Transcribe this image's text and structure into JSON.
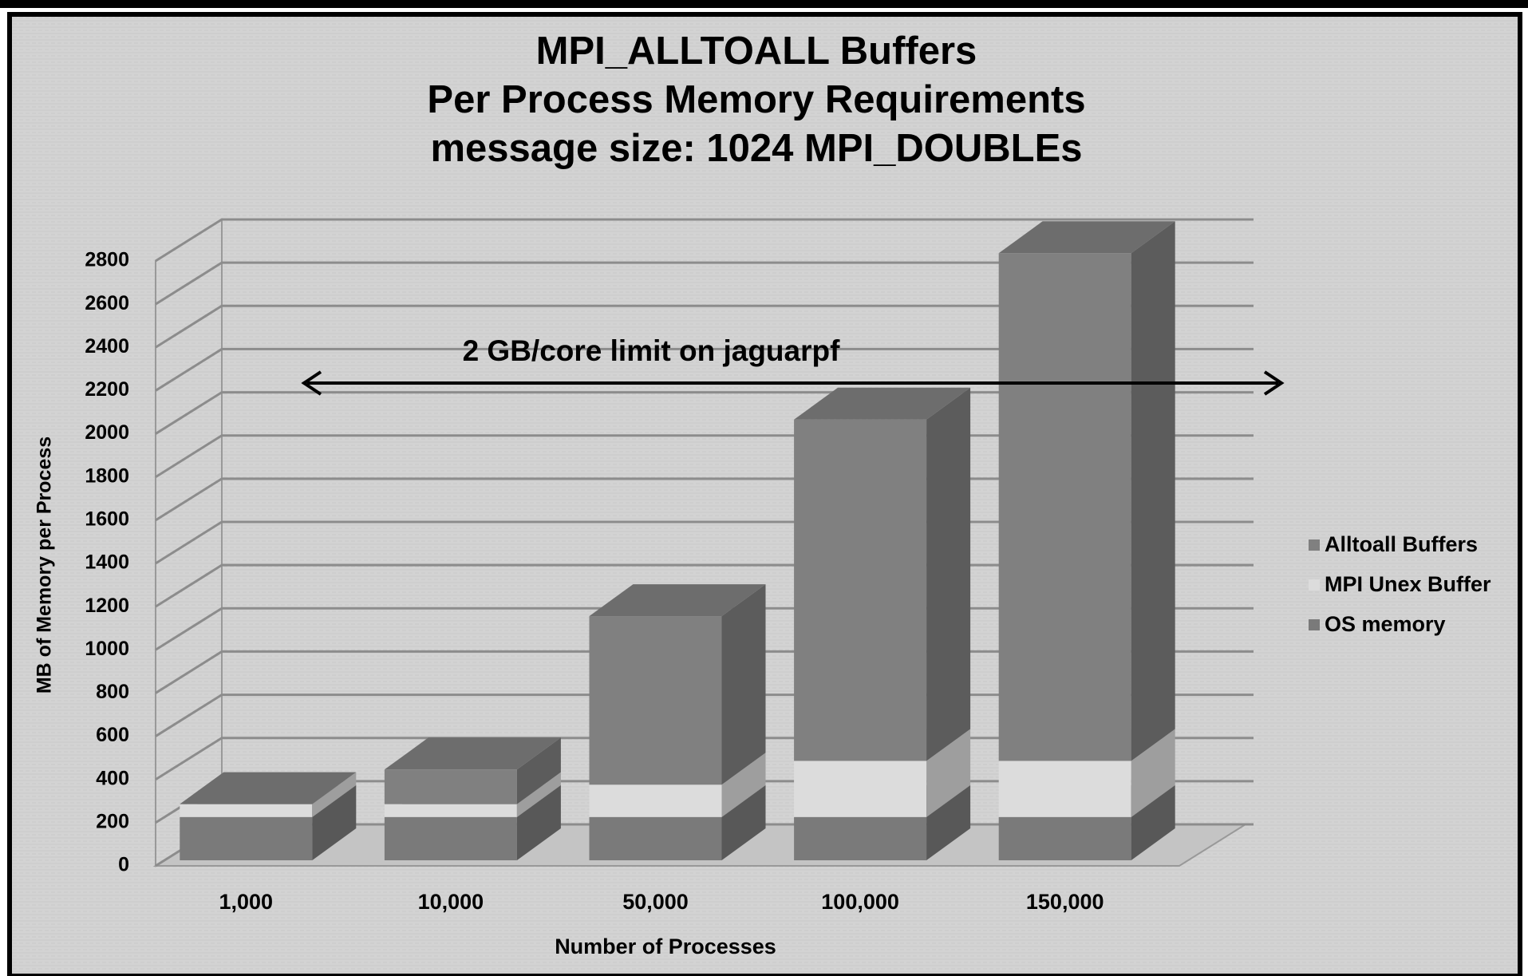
{
  "chart_data": {
    "type": "bar3d_stacked",
    "title": [
      "MPI_ALLTOALL Buffers",
      "Per Process Memory Requirements",
      "message size:   1024 MPI_DOUBLEs"
    ],
    "annotation": "2 GB/core limit on jaguarpf",
    "x_label": "Number of Processes",
    "y_label": "MB of Memory per Process",
    "categories": [
      "1,000",
      "10,000",
      "50,000",
      "100,000",
      "150,000"
    ],
    "series": [
      {
        "name": "Alltoall Buffers",
        "color": "#808080",
        "values": [
          0,
          160,
          780,
          1580,
          2350
        ]
      },
      {
        "name": "MPI Unex Buffer",
        "color": "#dcdcdc",
        "values": [
          60,
          60,
          150,
          260,
          260
        ]
      },
      {
        "name": "OS memory",
        "color": "#7a7a7a",
        "values": [
          200,
          200,
          200,
          200,
          200
        ]
      }
    ],
    "ylim": [
      0,
      2800
    ],
    "yticks": [
      0,
      200,
      400,
      600,
      800,
      1000,
      1200,
      1400,
      1600,
      1800,
      2000,
      2200,
      2400,
      2600,
      2800
    ],
    "grid": true,
    "legend": "right"
  }
}
